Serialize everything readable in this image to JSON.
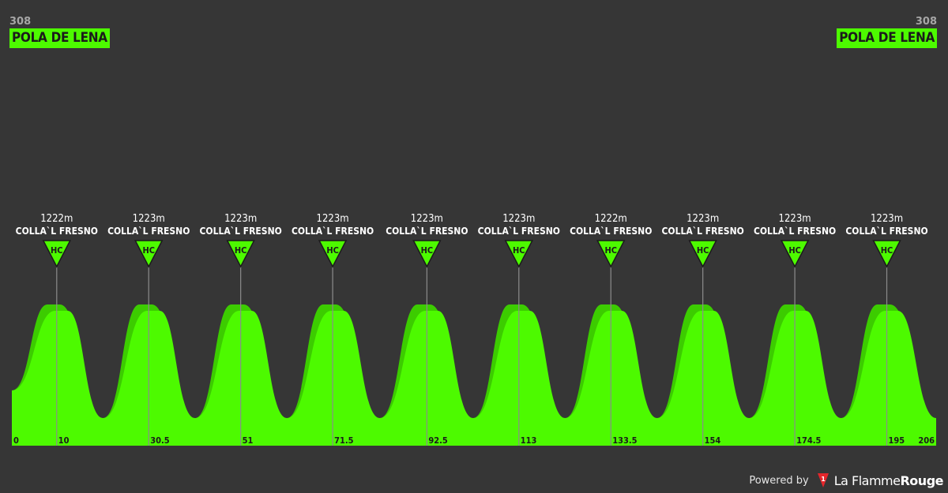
{
  "start": {
    "altitude": "308",
    "name": "POLA DE LENA"
  },
  "finish": {
    "altitude": "308",
    "name": "POLA DE LENA"
  },
  "footer": {
    "powered_by": "Powered by",
    "brand_light": "La Flamme",
    "brand_bold": "Rouge"
  },
  "colors": {
    "background": "#363636",
    "profile_light": "#4dfa00",
    "profile_dark": "#3ccc00",
    "marker_line": "#8c8c8c",
    "tick_label": "#1b1b1b"
  },
  "chart_data": {
    "type": "area",
    "xlabel": "",
    "ylabel": "",
    "distance_total_km": 206,
    "altitude_range_m": [
      308,
      1223
    ],
    "x_ticks": [
      "0",
      "10",
      "30.5",
      "51",
      "71.5",
      "92.5",
      "113",
      "133.5",
      "154",
      "174.5",
      "195",
      "206"
    ],
    "climbs": [
      {
        "km": 10,
        "altitude": "1222m",
        "name": "COLLA`L FRESNO",
        "category": "HC"
      },
      {
        "km": 30.5,
        "altitude": "1223m",
        "name": "COLLA`L FRESNO",
        "category": "HC"
      },
      {
        "km": 51,
        "altitude": "1223m",
        "name": "COLLA`L FRESNO",
        "category": "HC"
      },
      {
        "km": 71.5,
        "altitude": "1223m",
        "name": "COLLA`L FRESNO",
        "category": "HC"
      },
      {
        "km": 92.5,
        "altitude": "1223m",
        "name": "COLLA`L FRESNO",
        "category": "HC"
      },
      {
        "km": 113,
        "altitude": "1223m",
        "name": "COLLA`L FRESNO",
        "category": "HC"
      },
      {
        "km": 133.5,
        "altitude": "1222m",
        "name": "COLLA`L FRESNO",
        "category": "HC"
      },
      {
        "km": 154,
        "altitude": "1223m",
        "name": "COLLA`L FRESNO",
        "category": "HC"
      },
      {
        "km": 174.5,
        "altitude": "1223m",
        "name": "COLLA`L FRESNO",
        "category": "HC"
      },
      {
        "km": 195,
        "altitude": "1223m",
        "name": "COLLA`L FRESNO",
        "category": "HC"
      }
    ],
    "valleys_km": [
      0,
      20.3,
      40.8,
      61.3,
      82,
      102.8,
      123.3,
      143.8,
      164.3,
      184.8,
      206
    ]
  }
}
